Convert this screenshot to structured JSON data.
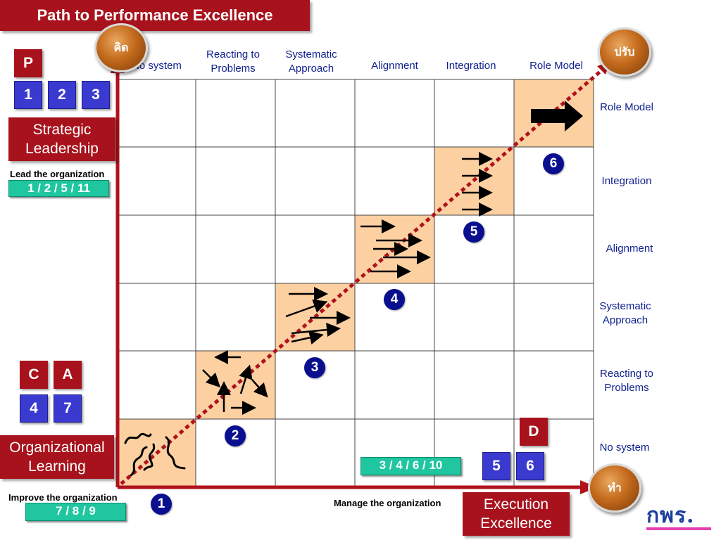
{
  "title": "Path to Performance Excellence",
  "orbs": {
    "think": "คิด",
    "improve": "ปรับ",
    "do": "ทำ"
  },
  "left_panel": {
    "p_label": "P",
    "p_numbers": [
      "1",
      "2",
      "3"
    ],
    "strategic_leadership": "Strategic Leadership",
    "lead_caption": "Lead the organization",
    "lead_codes": "1 / 2 / 5 / 11",
    "c_label": "C",
    "a_label": "A",
    "c_number": "4",
    "a_number": "7",
    "organizational_learning": "Organizational Learning",
    "improve_caption": "Improve the organization",
    "improve_codes": "7 / 8 / 9"
  },
  "columns": [
    "No system",
    "Reacting to Problems",
    "Systematic Approach",
    "Alignment",
    "Integration",
    "Role Model"
  ],
  "rows": [
    "Role Model",
    "Integration",
    "Alignment",
    "Systematic Approach",
    "Reacting to Problems",
    "No system"
  ],
  "step_badges": [
    "1",
    "2",
    "3",
    "4",
    "5",
    "6"
  ],
  "bottom": {
    "manage_caption": "Manage the organization",
    "manage_codes": "3 / 4 / 6 / 10",
    "d_label": "D",
    "d_numbers": [
      "5",
      "6"
    ],
    "execution_excellence": "Execution Excellence",
    "logo_text": "กพร."
  },
  "colors": {
    "accent_red": "#a8121c",
    "blue": "#3a3ad0",
    "teal": "#1fc6a0",
    "cell_highlight": "#fdd0a2",
    "text_blue": "#0f1f8f"
  }
}
